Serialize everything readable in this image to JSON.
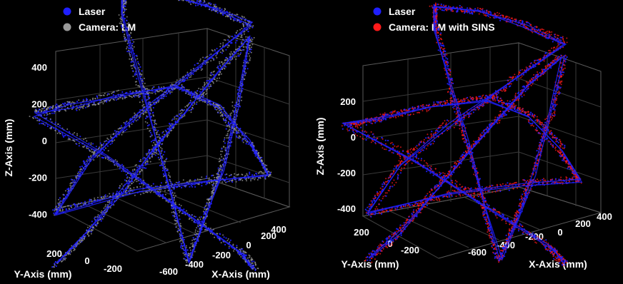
{
  "chart_data": [
    {
      "type": "scatter",
      "projection": "3d",
      "series": [
        {
          "name": "Laser",
          "color": "#1f1fff"
        },
        {
          "name": "Camera: LM",
          "color": "#9a9a9a"
        }
      ],
      "legend_position": "top-left",
      "xlabel": "X-Axis (mm)",
      "ylabel": "Y-Axis (mm)",
      "zlabel": "Z-Axis (mm)",
      "x_ticks": [
        "-600",
        "-400",
        "-200",
        "0",
        "200",
        "400"
      ],
      "y_ticks": [
        "200",
        "0",
        "-200"
      ],
      "z_ticks": [
        "400",
        "200",
        "0",
        "-200",
        "-400"
      ],
      "zlim": [
        -450,
        450
      ],
      "grid": true,
      "trajectory_xyz": [
        [
          -450,
          250,
          -420
        ],
        [
          -300,
          200,
          -300
        ],
        [
          -150,
          150,
          -150
        ],
        [
          0,
          100,
          0
        ],
        [
          150,
          50,
          150
        ],
        [
          300,
          0,
          300
        ],
        [
          450,
          -50,
          420
        ],
        [
          420,
          0,
          200
        ],
        [
          380,
          50,
          0
        ],
        [
          330,
          100,
          -150
        ],
        [
          280,
          150,
          -300
        ],
        [
          100,
          80,
          -150
        ],
        [
          -100,
          0,
          0
        ],
        [
          -300,
          -80,
          150
        ],
        [
          -480,
          -150,
          300
        ],
        [
          -480,
          -150,
          380
        ],
        [
          -200,
          -150,
          420
        ],
        [
          100,
          -150,
          430
        ],
        [
          350,
          -150,
          420
        ],
        [
          100,
          -50,
          250
        ],
        [
          -150,
          50,
          80
        ],
        [
          -350,
          150,
          -80
        ],
        [
          -450,
          250,
          -250
        ],
        [
          -100,
          100,
          -150
        ],
        [
          200,
          -50,
          -100
        ],
        [
          420,
          -180,
          -80
        ],
        [
          380,
          -100,
          50
        ],
        [
          300,
          0,
          180
        ],
        [
          150,
          100,
          250
        ],
        [
          -100,
          200,
          200
        ],
        [
          -300,
          300,
          150
        ],
        [
          -480,
          350,
          100
        ],
        [
          -250,
          150,
          -50
        ],
        [
          0,
          0,
          -200
        ],
        [
          250,
          -150,
          -350
        ],
        [
          300,
          -200,
          -420
        ]
      ]
    },
    {
      "type": "scatter",
      "projection": "3d",
      "series": [
        {
          "name": "Laser",
          "color": "#1f1fff"
        },
        {
          "name": "Camera: LM with SINS",
          "color": "#ff1a1a"
        }
      ],
      "legend_position": "top-left",
      "xlabel": "X-Axis (mm)",
      "ylabel": "Y-Axis (mm)",
      "zlabel": "Z-Axis (mm)",
      "x_ticks": [
        "-600",
        "-400",
        "-200",
        "0",
        "200",
        "400"
      ],
      "y_ticks": [
        "200",
        "0",
        "-200"
      ],
      "z_ticks": [
        "200",
        "0",
        "-200",
        "-400"
      ],
      "zlim": [
        -450,
        350
      ],
      "grid": true,
      "trajectory_xyz": [
        [
          -450,
          250,
          -420
        ],
        [
          -300,
          200,
          -300
        ],
        [
          -150,
          150,
          -150
        ],
        [
          0,
          100,
          0
        ],
        [
          150,
          50,
          150
        ],
        [
          300,
          0,
          300
        ],
        [
          450,
          -50,
          420
        ],
        [
          420,
          0,
          200
        ],
        [
          380,
          50,
          0
        ],
        [
          330,
          100,
          -150
        ],
        [
          280,
          150,
          -300
        ],
        [
          100,
          80,
          -150
        ],
        [
          -100,
          0,
          0
        ],
        [
          -300,
          -80,
          150
        ],
        [
          -480,
          -150,
          300
        ],
        [
          -480,
          -150,
          380
        ],
        [
          -200,
          -150,
          420
        ],
        [
          100,
          -150,
          430
        ],
        [
          350,
          -150,
          420
        ],
        [
          100,
          -50,
          250
        ],
        [
          -150,
          50,
          80
        ],
        [
          -350,
          150,
          -80
        ],
        [
          -450,
          250,
          -250
        ],
        [
          -100,
          100,
          -150
        ],
        [
          200,
          -50,
          -100
        ],
        [
          420,
          -180,
          -80
        ],
        [
          380,
          -100,
          50
        ],
        [
          300,
          0,
          180
        ],
        [
          150,
          100,
          250
        ],
        [
          -100,
          200,
          200
        ],
        [
          -300,
          300,
          150
        ],
        [
          -480,
          350,
          100
        ],
        [
          -250,
          150,
          -50
        ],
        [
          0,
          0,
          -200
        ],
        [
          250,
          -150,
          -350
        ],
        [
          300,
          -200,
          -420
        ]
      ]
    }
  ]
}
